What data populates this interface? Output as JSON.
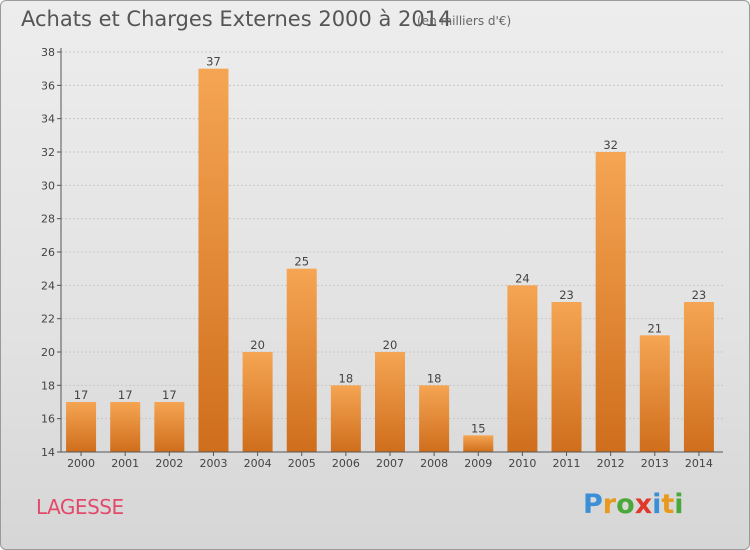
{
  "title": "Achats et Charges Externes 2000 à 2014",
  "subtitle": "(en milliers d'€)",
  "commune": "LAGESSE",
  "brand": {
    "letters": [
      {
        "ch": "P",
        "color": "#3a8fd6"
      },
      {
        "ch": "r",
        "color": "#e89a1e"
      },
      {
        "ch": "o",
        "color": "#4aa83a"
      },
      {
        "ch": "x",
        "color": "#e0392b"
      },
      {
        "ch": "i",
        "color": "#3a8fd6"
      },
      {
        "ch": "t",
        "color": "#e89a1e"
      },
      {
        "ch": "i",
        "color": "#4aa83a"
      }
    ]
  },
  "colors": {
    "bar_top": "#f5a553",
    "bar_bottom": "#cf6e1c",
    "axis": "#555555",
    "grid": "#c8c8c8",
    "label": "#444444"
  },
  "chart_data": {
    "type": "bar",
    "categories": [
      "2000",
      "2001",
      "2002",
      "2003",
      "2004",
      "2005",
      "2006",
      "2007",
      "2008",
      "2009",
      "2010",
      "2011",
      "2012",
      "2013",
      "2014"
    ],
    "values": [
      17,
      17,
      17,
      37,
      20,
      25,
      18,
      20,
      18,
      15,
      24,
      23,
      32,
      21,
      23
    ],
    "ylim": [
      14,
      38
    ],
    "yticks": [
      14,
      16,
      18,
      20,
      22,
      24,
      26,
      28,
      30,
      32,
      34,
      36,
      38
    ],
    "grid": true,
    "legend": "none"
  }
}
